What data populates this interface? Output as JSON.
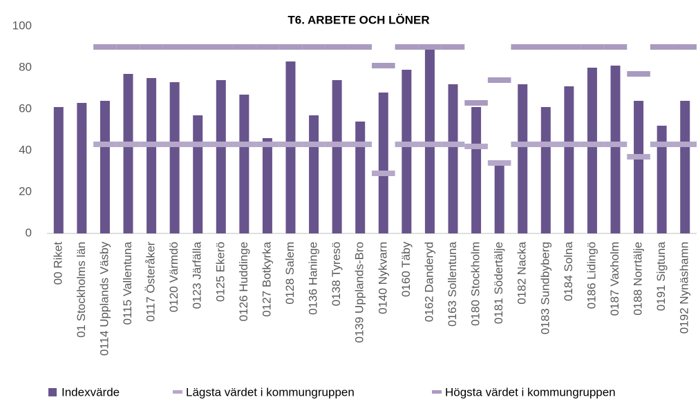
{
  "chart_data": {
    "type": "bar",
    "title": "T6. ARBETE OCH LÖNER",
    "categories": [
      "00 Riket",
      "01 Stockholms län",
      "0114 Upplands Väsby",
      "0115 Vallentuna",
      "0117 Österåker",
      "0120 Värmdö",
      "0123 Järfälla",
      "0125 Ekerö",
      "0126 Huddinge",
      "0127 Botkyrka",
      "0128 Salem",
      "0136 Haninge",
      "0138 Tyresö",
      "0139 Upplands-Bro",
      "0140 Nykvarn",
      "0160 Täby",
      "0162 Danderyd",
      "0163 Sollentuna",
      "0180 Stockholm",
      "0181 Södertälje",
      "0182 Nacka",
      "0183 Sundbyberg",
      "0184 Solna",
      "0186 Lidingö",
      "0187 Vaxholm",
      "0188 Norrtälje",
      "0191 Sigtuna",
      "0192 Nynäshamn"
    ],
    "series": [
      {
        "name": "Indexvärde",
        "color": "#68548c",
        "mark": "bar",
        "values": [
          61,
          63,
          64,
          77,
          75,
          73,
          57,
          74,
          67,
          46,
          83,
          57,
          74,
          54,
          68,
          79,
          89,
          72,
          61,
          33,
          72,
          61,
          71,
          80,
          81,
          64,
          52,
          64
        ]
      },
      {
        "name": "Lägsta värdet i kommungruppen",
        "color": "#b6a8c9",
        "mark": "dash",
        "values": [
          null,
          null,
          43,
          43,
          43,
          43,
          43,
          43,
          43,
          43,
          43,
          43,
          43,
          43,
          29,
          43,
          43,
          43,
          42,
          34,
          43,
          43,
          43,
          43,
          43,
          37,
          43,
          43
        ]
      },
      {
        "name": "Högsta värdet i kommungruppen",
        "color": "#a99bbf",
        "mark": "dash",
        "values": [
          null,
          null,
          90,
          90,
          90,
          90,
          90,
          90,
          90,
          90,
          90,
          90,
          90,
          90,
          81,
          90,
          90,
          90,
          63,
          74,
          90,
          90,
          90,
          90,
          90,
          77,
          90,
          90
        ]
      }
    ],
    "ylim": [
      0,
      100
    ],
    "yticks": [
      0,
      20,
      40,
      60,
      80,
      100
    ],
    "grid": false,
    "legend": "bottom"
  }
}
